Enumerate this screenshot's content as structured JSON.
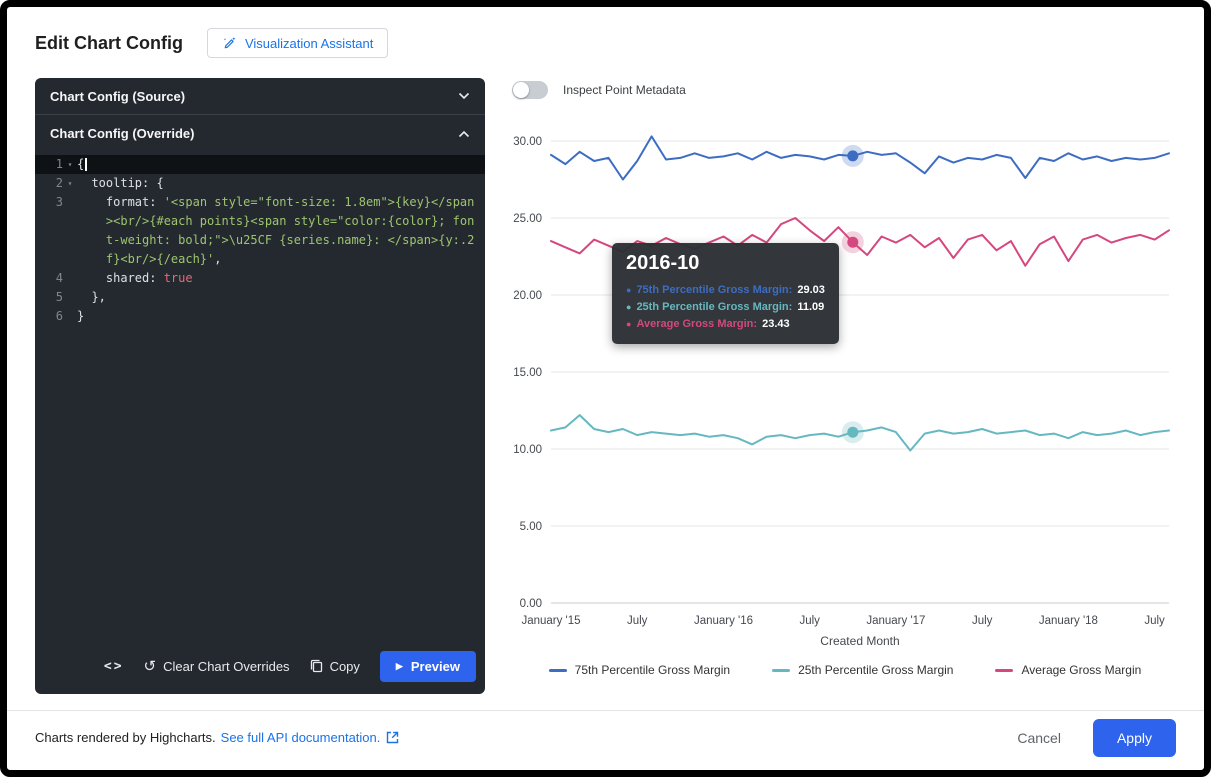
{
  "header": {
    "title": "Edit Chart Config",
    "assistant_button": "Visualization Assistant"
  },
  "colors": {
    "primary_button": "#2d63ed",
    "link": "#1a73e8"
  },
  "icons": {
    "code": "<>",
    "history": "↺",
    "play": "▶",
    "bullet": "●"
  },
  "editor": {
    "source_section": "Chart Config (Source)",
    "override_section": "Chart Config (Override)",
    "toolbar": {
      "clear_label": "Clear Chart Overrides",
      "copy_label": "Copy",
      "preview_label": "Preview"
    },
    "code_lines": [
      {
        "num": "1",
        "fold": true,
        "active": true,
        "cursor": true,
        "segments": [
          {
            "t": "{",
            "c": "plain"
          }
        ]
      },
      {
        "num": "2",
        "fold": true,
        "segments": [
          {
            "t": "  tooltip: {",
            "c": "plain"
          }
        ]
      },
      {
        "num": "3",
        "segments": [
          {
            "t": "    format: ",
            "c": "plain"
          },
          {
            "t": "'<span style=\"font-size: 1.8em\">{key}</span><br/>{#each points}<span style=\"color:{color}; font-weight: bold;\">\\u25CF {series.name}: </span>{y:.2f}<br/>{/each}'",
            "c": "string"
          },
          {
            "t": ",",
            "c": "plain"
          }
        ]
      },
      {
        "num": "4",
        "segments": [
          {
            "t": "    shared: ",
            "c": "plain"
          },
          {
            "t": "true",
            "c": "atom"
          }
        ]
      },
      {
        "num": "5",
        "segments": [
          {
            "t": "  },",
            "c": "plain"
          }
        ]
      },
      {
        "num": "6",
        "segments": [
          {
            "t": "}",
            "c": "plain"
          }
        ]
      }
    ]
  },
  "chart_panel": {
    "toggle_label": "Inspect Point Metadata",
    "toggle_state": "off",
    "tooltip": {
      "title": "2016-10",
      "rows": [
        {
          "label": "75th Percentile Gross Margin:",
          "value": "29.03",
          "color": "#3d6dc2"
        },
        {
          "label": "25th Percentile Gross Margin:",
          "value": "11.09",
          "color": "#66b8c0"
        },
        {
          "label": "Average Gross Margin:",
          "value": "23.43",
          "color": "#d4487f"
        }
      ]
    }
  },
  "chart_data": {
    "type": "line",
    "x": [
      "2015-01",
      "2015-02",
      "2015-03",
      "2015-04",
      "2015-05",
      "2015-06",
      "2015-07",
      "2015-08",
      "2015-09",
      "2015-10",
      "2015-11",
      "2015-12",
      "2016-01",
      "2016-02",
      "2016-03",
      "2016-04",
      "2016-05",
      "2016-06",
      "2016-07",
      "2016-08",
      "2016-09",
      "2016-10",
      "2016-11",
      "2016-12",
      "2017-01",
      "2017-02",
      "2017-03",
      "2017-04",
      "2017-05",
      "2017-06",
      "2017-07",
      "2017-08",
      "2017-09",
      "2017-10",
      "2017-11",
      "2017-12",
      "2018-01",
      "2018-02",
      "2018-03",
      "2018-04",
      "2018-05",
      "2018-06",
      "2018-07",
      "2018-08"
    ],
    "x_tick_indices": [
      0,
      6,
      12,
      18,
      24,
      30,
      36,
      42
    ],
    "x_tick_labels": [
      "January '15",
      "July",
      "January '16",
      "July",
      "January '17",
      "July",
      "January '18",
      "July"
    ],
    "xlabel": "Created Month",
    "ylabel": "",
    "ylim": [
      0,
      30
    ],
    "y_ticks": [
      "0.00",
      "5.00",
      "10.00",
      "15.00",
      "20.00",
      "25.00",
      "30.00"
    ],
    "grid": true,
    "legend_position": "bottom",
    "highlight_x": "2016-10",
    "series": [
      {
        "name": "75th Percentile Gross Margin",
        "color": "#3d6dc2",
        "values": [
          29.1,
          28.5,
          29.3,
          28.7,
          28.9,
          27.5,
          28.7,
          30.3,
          28.8,
          28.9,
          29.2,
          28.9,
          29.0,
          29.2,
          28.8,
          29.3,
          28.9,
          29.1,
          29.0,
          28.8,
          29.1,
          29.03,
          29.3,
          29.1,
          29.2,
          28.6,
          27.9,
          29.0,
          28.6,
          28.9,
          28.8,
          29.1,
          28.9,
          27.6,
          28.9,
          28.7,
          29.2,
          28.8,
          29.0,
          28.7,
          28.9,
          28.8,
          28.9,
          29.2
        ]
      },
      {
        "name": "25th Percentile Gross Margin",
        "color": "#66b8c0",
        "values": [
          11.2,
          11.4,
          12.2,
          11.3,
          11.1,
          11.3,
          10.9,
          11.1,
          11.0,
          10.9,
          11.0,
          10.8,
          10.9,
          10.7,
          10.3,
          10.8,
          10.9,
          10.7,
          10.9,
          11.0,
          10.8,
          11.09,
          11.2,
          11.4,
          11.1,
          9.9,
          11.0,
          11.2,
          11.0,
          11.1,
          11.3,
          11.0,
          11.1,
          11.2,
          10.9,
          11.0,
          10.7,
          11.1,
          10.9,
          11.0,
          11.2,
          10.9,
          11.1,
          11.2
        ]
      },
      {
        "name": "Average Gross Margin",
        "color": "#d4487f",
        "values": [
          23.5,
          23.1,
          22.7,
          23.6,
          23.2,
          22.8,
          23.5,
          23.2,
          23.7,
          23.3,
          23.0,
          23.4,
          23.8,
          23.2,
          23.9,
          23.4,
          24.6,
          25.0,
          24.2,
          23.5,
          24.4,
          23.43,
          22.6,
          23.8,
          23.4,
          23.9,
          23.1,
          23.7,
          22.4,
          23.6,
          23.9,
          22.9,
          23.5,
          21.9,
          23.3,
          23.8,
          22.2,
          23.6,
          23.9,
          23.4,
          23.7,
          23.9,
          23.6,
          24.2
        ]
      }
    ]
  },
  "footer": {
    "credit": "Charts rendered by Highcharts.",
    "doc_link": "See full API documentation.",
    "cancel": "Cancel",
    "apply": "Apply"
  }
}
